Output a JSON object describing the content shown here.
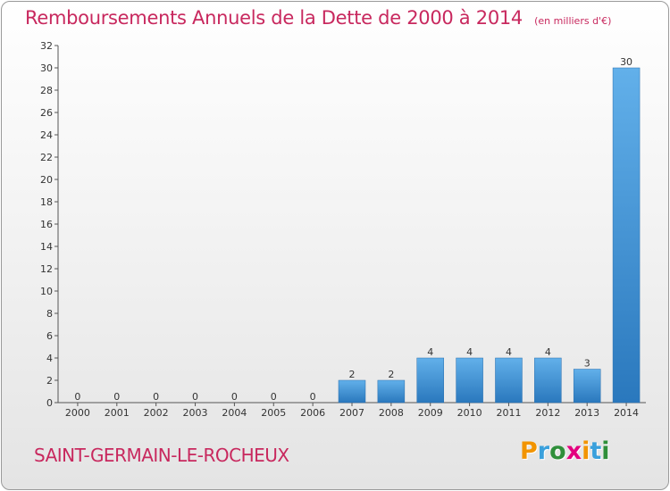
{
  "chart_data": {
    "type": "bar",
    "title": "Remboursements Annuels de la Dette de 2000 à 2014",
    "subtitle": "(en milliers d'€)",
    "categories": [
      "2000",
      "2001",
      "2002",
      "2003",
      "2004",
      "2005",
      "2006",
      "2007",
      "2008",
      "2009",
      "2010",
      "2011",
      "2012",
      "2013",
      "2014"
    ],
    "values": [
      0,
      0,
      0,
      0,
      0,
      0,
      0,
      2,
      2,
      4,
      4,
      4,
      4,
      3,
      30
    ],
    "ylim": [
      0,
      32
    ],
    "yticks": [
      0,
      2,
      4,
      6,
      8,
      10,
      12,
      14,
      16,
      18,
      20,
      22,
      24,
      26,
      28,
      30,
      32
    ],
    "grid": false,
    "bar_color": "#3a8fd6"
  },
  "footer": {
    "commune": "SAINT-GERMAIN-LE-ROCHEUX",
    "brand": [
      "P",
      "r",
      "o",
      "x",
      "i",
      "t",
      "i"
    ],
    "brand_colors": [
      "#f29400",
      "#3aa0dc",
      "#2f8f3a",
      "#e3007e",
      "#f29400",
      "#3aa0dc",
      "#2f8f3a"
    ]
  }
}
